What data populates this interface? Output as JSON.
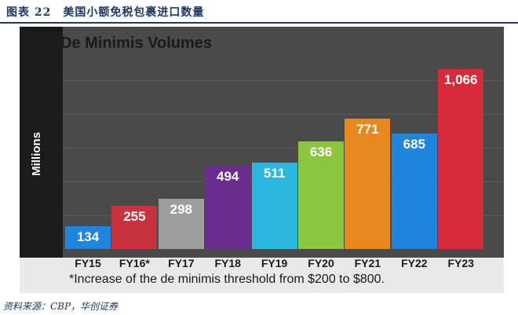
{
  "figure": {
    "title": "图表 22　美国小额免税包裹进口数量",
    "source": "资料来源：CBP，华创证券"
  },
  "chart_data": {
    "type": "bar",
    "title": "De Minimis Volumes",
    "xlabel": "",
    "ylabel": "Millions",
    "categories": [
      "FY15",
      "FY16*",
      "FY17",
      "FY18",
      "FY19",
      "FY20",
      "FY21",
      "FY22",
      "FY23"
    ],
    "values": [
      134,
      255,
      298,
      494,
      511,
      636,
      771,
      685,
      1066
    ],
    "value_labels": [
      "134",
      "255",
      "298",
      "494",
      "511",
      "636",
      "771",
      "685",
      "1,066"
    ],
    "colors": [
      "#1f86e0",
      "#c9323f",
      "#9e9e9e",
      "#6a2c8f",
      "#2bb7e0",
      "#8cc63f",
      "#e8891e",
      "#1f86e0",
      "#d9293a"
    ],
    "ylim": [
      0,
      1200
    ],
    "grid": true,
    "legend": "none",
    "footnote": "*Increase of the de minimis threshold from $200 to $800."
  }
}
